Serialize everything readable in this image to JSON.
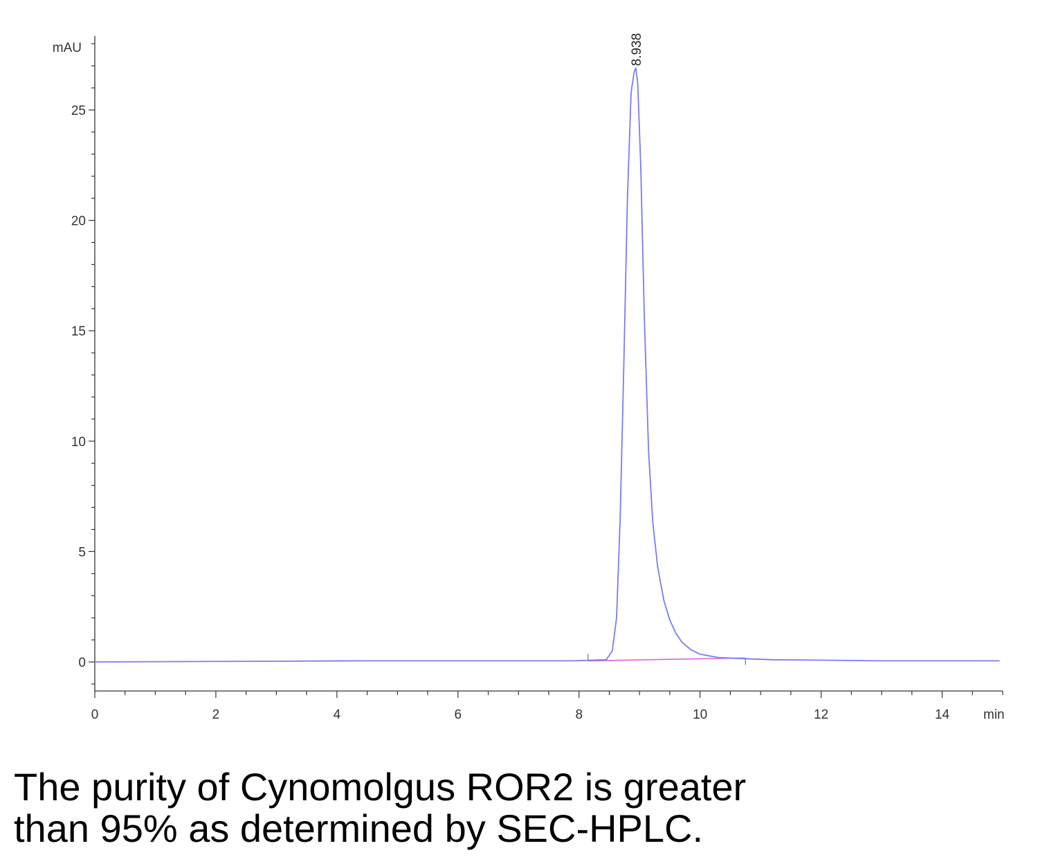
{
  "chart_data": {
    "type": "line",
    "xlabel": "min",
    "ylabel": "mAU",
    "xlim": [
      0,
      15
    ],
    "ylim": [
      -1.3,
      28
    ],
    "x_ticks": [
      0,
      2,
      4,
      6,
      8,
      10,
      12,
      14
    ],
    "y_ticks": [
      0,
      5,
      10,
      15,
      20,
      25
    ],
    "series": [
      {
        "color": "#7b7bf0",
        "x": [
          0,
          4.4,
          7.9,
          8.45,
          8.55,
          8.62,
          8.68,
          8.74,
          8.8,
          8.86,
          8.91,
          8.938,
          8.97,
          9.02,
          9.08,
          9.15,
          9.22,
          9.3,
          9.4,
          9.5,
          9.6,
          9.7,
          9.85,
          10.0,
          10.3,
          10.7,
          11.2,
          12.0,
          13.0,
          14.0,
          14.95
        ],
        "y": [
          0,
          0.05,
          0.05,
          0.1,
          0.5,
          2,
          6.5,
          13.5,
          21,
          25.8,
          26.7,
          26.9,
          26.2,
          22.5,
          15.5,
          9.5,
          6.3,
          4.3,
          2.8,
          1.9,
          1.3,
          0.9,
          0.55,
          0.35,
          0.2,
          0.15,
          0.1,
          0.08,
          0.05,
          0.05,
          0.05
        ]
      }
    ],
    "baseline": {
      "color": "#e060e0",
      "x": [
        8.15,
        10.75
      ],
      "y": [
        0.05,
        0.18
      ]
    },
    "peak_annotation": {
      "x": 8.938,
      "y": 26.9,
      "label": "8.938"
    }
  },
  "caption": {
    "line1": "The purity of Cynomolgus ROR2 is greater",
    "line2": "than 95% as determined by SEC-HPLC."
  }
}
